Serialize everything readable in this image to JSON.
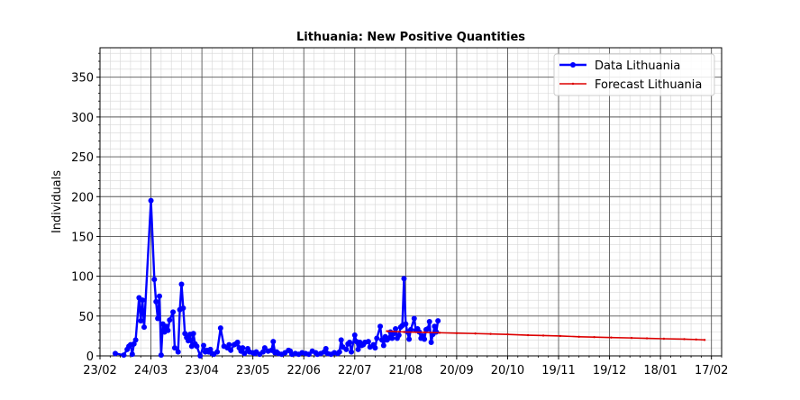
{
  "chart_data": {
    "type": "line",
    "title": "Lithuania: New Positive Quantities",
    "xlabel": "",
    "ylabel": "Individuals",
    "x_tick_labels": [
      "23/02",
      "24/03",
      "23/04",
      "23/05",
      "22/06",
      "22/07",
      "21/08",
      "20/09",
      "20/10",
      "19/11",
      "19/12",
      "18/01",
      "17/02"
    ],
    "y_tick_labels": [
      "0",
      "50",
      "100",
      "150",
      "200",
      "250",
      "300",
      "350"
    ],
    "xlim": [
      "2020-02-23",
      "2021-02-23"
    ],
    "ylim": [
      0,
      387
    ],
    "grid": "major and minor",
    "legend_position": "top-right",
    "series": [
      {
        "name": "Data Lithuania",
        "color": "#0000ff",
        "marker": "circle",
        "points": [
          [
            "2020-03-03",
            3
          ],
          [
            "2020-03-08",
            1
          ],
          [
            "2020-03-10",
            8
          ],
          [
            "2020-03-11",
            12
          ],
          [
            "2020-03-12",
            14
          ],
          [
            "2020-03-13",
            2
          ],
          [
            "2020-03-14",
            15
          ],
          [
            "2020-03-15",
            20
          ],
          [
            "2020-03-17",
            73
          ],
          [
            "2020-03-18",
            44
          ],
          [
            "2020-03-19",
            70
          ],
          [
            "2020-03-20",
            36
          ],
          [
            "2020-03-24",
            195
          ],
          [
            "2020-03-26",
            96
          ],
          [
            "2020-03-27",
            68
          ],
          [
            "2020-03-28",
            47
          ],
          [
            "2020-03-29",
            75
          ],
          [
            "2020-03-30",
            1
          ],
          [
            "2020-03-31",
            40
          ],
          [
            "2020-04-01",
            30
          ],
          [
            "2020-04-02",
            37
          ],
          [
            "2020-04-03",
            32
          ],
          [
            "2020-04-04",
            45
          ],
          [
            "2020-04-06",
            55
          ],
          [
            "2020-04-07",
            10
          ],
          [
            "2020-04-09",
            5
          ],
          [
            "2020-04-10",
            58
          ],
          [
            "2020-04-11",
            90
          ],
          [
            "2020-04-12",
            60
          ],
          [
            "2020-04-13",
            28
          ],
          [
            "2020-04-14",
            23
          ],
          [
            "2020-04-15",
            19
          ],
          [
            "2020-04-16",
            27
          ],
          [
            "2020-04-17",
            12
          ],
          [
            "2020-04-18",
            28
          ],
          [
            "2020-04-19",
            15
          ],
          [
            "2020-04-20",
            12
          ],
          [
            "2020-04-22",
            0
          ],
          [
            "2020-04-24",
            13
          ],
          [
            "2020-04-25",
            5
          ],
          [
            "2020-04-26",
            7
          ],
          [
            "2020-04-27",
            5
          ],
          [
            "2020-04-28",
            8
          ],
          [
            "2020-04-29",
            3
          ],
          [
            "2020-04-30",
            2
          ],
          [
            "2020-05-02",
            5
          ],
          [
            "2020-05-04",
            35
          ],
          [
            "2020-05-06",
            12
          ],
          [
            "2020-05-08",
            10
          ],
          [
            "2020-05-09",
            14
          ],
          [
            "2020-05-10",
            7
          ],
          [
            "2020-05-12",
            14
          ],
          [
            "2020-05-13",
            15
          ],
          [
            "2020-05-14",
            17
          ],
          [
            "2020-05-15",
            10
          ],
          [
            "2020-05-16",
            6
          ],
          [
            "2020-05-17",
            10
          ],
          [
            "2020-05-18",
            3
          ],
          [
            "2020-05-20",
            9
          ],
          [
            "2020-05-21",
            5
          ],
          [
            "2020-05-23",
            4
          ],
          [
            "2020-05-24",
            3
          ],
          [
            "2020-05-25",
            5
          ],
          [
            "2020-05-27",
            2
          ],
          [
            "2020-05-29",
            5
          ],
          [
            "2020-05-30",
            10
          ],
          [
            "2020-06-01",
            6
          ],
          [
            "2020-06-03",
            7
          ],
          [
            "2020-06-04",
            18
          ],
          [
            "2020-06-05",
            4
          ],
          [
            "2020-06-06",
            5
          ],
          [
            "2020-06-07",
            3
          ],
          [
            "2020-06-09",
            2
          ],
          [
            "2020-06-11",
            4
          ],
          [
            "2020-06-13",
            7
          ],
          [
            "2020-06-14",
            6
          ],
          [
            "2020-06-15",
            2
          ],
          [
            "2020-06-17",
            3
          ],
          [
            "2020-06-19",
            2
          ],
          [
            "2020-06-21",
            4
          ],
          [
            "2020-06-23",
            3
          ],
          [
            "2020-06-25",
            2
          ],
          [
            "2020-06-27",
            6
          ],
          [
            "2020-06-29",
            4
          ],
          [
            "2020-06-30",
            2
          ],
          [
            "2020-07-02",
            3
          ],
          [
            "2020-07-04",
            5
          ],
          [
            "2020-07-05",
            9
          ],
          [
            "2020-07-06",
            3
          ],
          [
            "2020-07-08",
            2
          ],
          [
            "2020-07-10",
            4
          ],
          [
            "2020-07-12",
            3
          ],
          [
            "2020-07-13",
            5
          ],
          [
            "2020-07-14",
            20
          ],
          [
            "2020-07-15",
            11
          ],
          [
            "2020-07-17",
            8
          ],
          [
            "2020-07-18",
            15
          ],
          [
            "2020-07-19",
            17
          ],
          [
            "2020-07-20",
            5
          ],
          [
            "2020-07-22",
            26
          ],
          [
            "2020-07-23",
            18
          ],
          [
            "2020-07-24",
            8
          ],
          [
            "2020-07-25",
            17
          ],
          [
            "2020-07-26",
            13
          ],
          [
            "2020-07-27",
            14
          ],
          [
            "2020-07-28",
            17
          ],
          [
            "2020-07-30",
            18
          ],
          [
            "2020-07-31",
            11
          ],
          [
            "2020-08-02",
            14
          ],
          [
            "2020-08-03",
            10
          ],
          [
            "2020-08-04",
            22
          ],
          [
            "2020-08-06",
            37
          ],
          [
            "2020-08-07",
            20
          ],
          [
            "2020-08-08",
            13
          ],
          [
            "2020-08-09",
            24
          ],
          [
            "2020-08-10",
            20
          ],
          [
            "2020-08-11",
            22
          ],
          [
            "2020-08-12",
            30
          ],
          [
            "2020-08-13",
            22
          ],
          [
            "2020-08-14",
            28
          ],
          [
            "2020-08-15",
            34
          ],
          [
            "2020-08-16",
            22
          ],
          [
            "2020-08-17",
            26
          ],
          [
            "2020-08-18",
            36
          ],
          [
            "2020-08-19",
            38
          ],
          [
            "2020-08-20",
            97
          ],
          [
            "2020-08-21",
            40
          ],
          [
            "2020-08-22",
            30
          ],
          [
            "2020-08-23",
            21
          ],
          [
            "2020-08-24",
            33
          ],
          [
            "2020-08-26",
            47
          ],
          [
            "2020-08-27",
            32
          ],
          [
            "2020-08-28",
            34
          ],
          [
            "2020-08-29",
            30
          ],
          [
            "2020-08-30",
            22
          ],
          [
            "2020-08-31",
            25
          ],
          [
            "2020-09-01",
            21
          ],
          [
            "2020-09-02",
            33
          ],
          [
            "2020-09-03",
            34
          ],
          [
            "2020-09-04",
            43
          ],
          [
            "2020-09-05",
            17
          ],
          [
            "2020-09-06",
            27
          ],
          [
            "2020-09-07",
            37
          ],
          [
            "2020-09-08",
            30
          ],
          [
            "2020-09-09",
            44
          ]
        ]
      },
      {
        "name": "Forecast Lithuania",
        "color": "#dd0000",
        "marker": "point",
        "points": [
          [
            "2020-08-10",
            31
          ],
          [
            "2020-08-20",
            30
          ],
          [
            "2020-09-01",
            29.5
          ],
          [
            "2020-09-10",
            29
          ],
          [
            "2020-09-20",
            28.5
          ],
          [
            "2020-10-01",
            28
          ],
          [
            "2020-10-10",
            27.5
          ],
          [
            "2020-10-20",
            27
          ],
          [
            "2020-11-01",
            26
          ],
          [
            "2020-11-10",
            25.5
          ],
          [
            "2020-11-20",
            25
          ],
          [
            "2020-12-01",
            24
          ],
          [
            "2020-12-10",
            23.5
          ],
          [
            "2020-12-20",
            23
          ],
          [
            "2021-01-01",
            22.5
          ],
          [
            "2021-01-10",
            22
          ],
          [
            "2021-01-20",
            21.5
          ],
          [
            "2021-02-01",
            21
          ],
          [
            "2021-02-08",
            20.5
          ],
          [
            "2021-02-13",
            20
          ]
        ]
      }
    ]
  }
}
